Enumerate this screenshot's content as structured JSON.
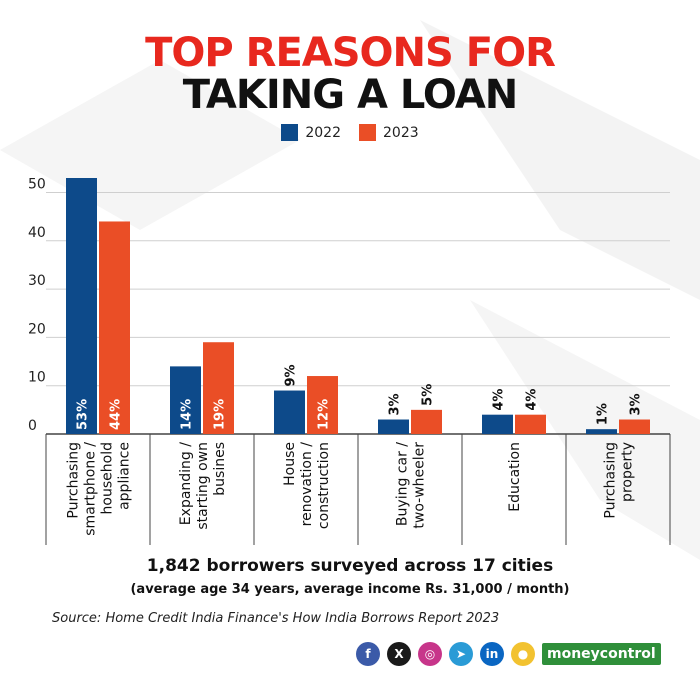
{
  "title": {
    "line1": "TOP REASONS FOR",
    "line2": "TAKING A LOAN",
    "accent": "#e8281e",
    "dark": "#111111"
  },
  "legend": [
    {
      "label": "2022",
      "color": "#0d4a8a"
    },
    {
      "label": "2023",
      "color": "#ea4e26"
    }
  ],
  "chart_data": {
    "type": "bar",
    "categories": [
      [
        "Purchasing",
        "smartphone /",
        "household",
        "appliance"
      ],
      [
        "Expanding /",
        "starting own",
        "busines"
      ],
      [
        "House",
        "renovation /",
        "construction"
      ],
      [
        "Buying car /",
        "two-wheeler"
      ],
      [
        "Education"
      ],
      [
        "Purchasing",
        "property"
      ]
    ],
    "series": [
      {
        "name": "2022",
        "values": [
          53,
          14,
          9,
          3,
          4,
          1
        ],
        "labels": [
          "53%",
          "14%",
          "9%",
          "3%",
          "4%",
          "1%"
        ],
        "color": "#0d4a8a"
      },
      {
        "name": "2023",
        "values": [
          44,
          19,
          12,
          5,
          4,
          3
        ],
        "labels": [
          "44%",
          "19%",
          "12%",
          "5%",
          "4%",
          "3%"
        ],
        "color": "#ea4e26"
      }
    ],
    "yticks": [
      0,
      10,
      20,
      30,
      40,
      50
    ],
    "ylim": [
      0,
      53
    ],
    "grid": true,
    "legend_position": "top-center",
    "xlabel": "",
    "ylabel": ""
  },
  "footer": {
    "main": "1,842 borrowers surveyed across 17 cities",
    "sub": "(average age 34 years, average income Rs. 31,000 / month)",
    "source": "Source: Home Credit India Finance's How India Borrows Report 2023"
  },
  "social": [
    {
      "icon": "facebook-icon",
      "glyph": "f",
      "color": "#3b5aa8"
    },
    {
      "icon": "x-icon",
      "glyph": "X",
      "color": "#1a1a1a"
    },
    {
      "icon": "instagram-icon",
      "glyph": "◎",
      "color": "#c7358a"
    },
    {
      "icon": "telegram-icon",
      "glyph": "➤",
      "color": "#2a9bd6"
    },
    {
      "icon": "linkedin-icon",
      "glyph": "in",
      "color": "#0a66c2"
    },
    {
      "icon": "koo-icon",
      "glyph": "●",
      "color": "#f2c230"
    }
  ],
  "logo": {
    "part1": "money",
    "part2": "control"
  }
}
